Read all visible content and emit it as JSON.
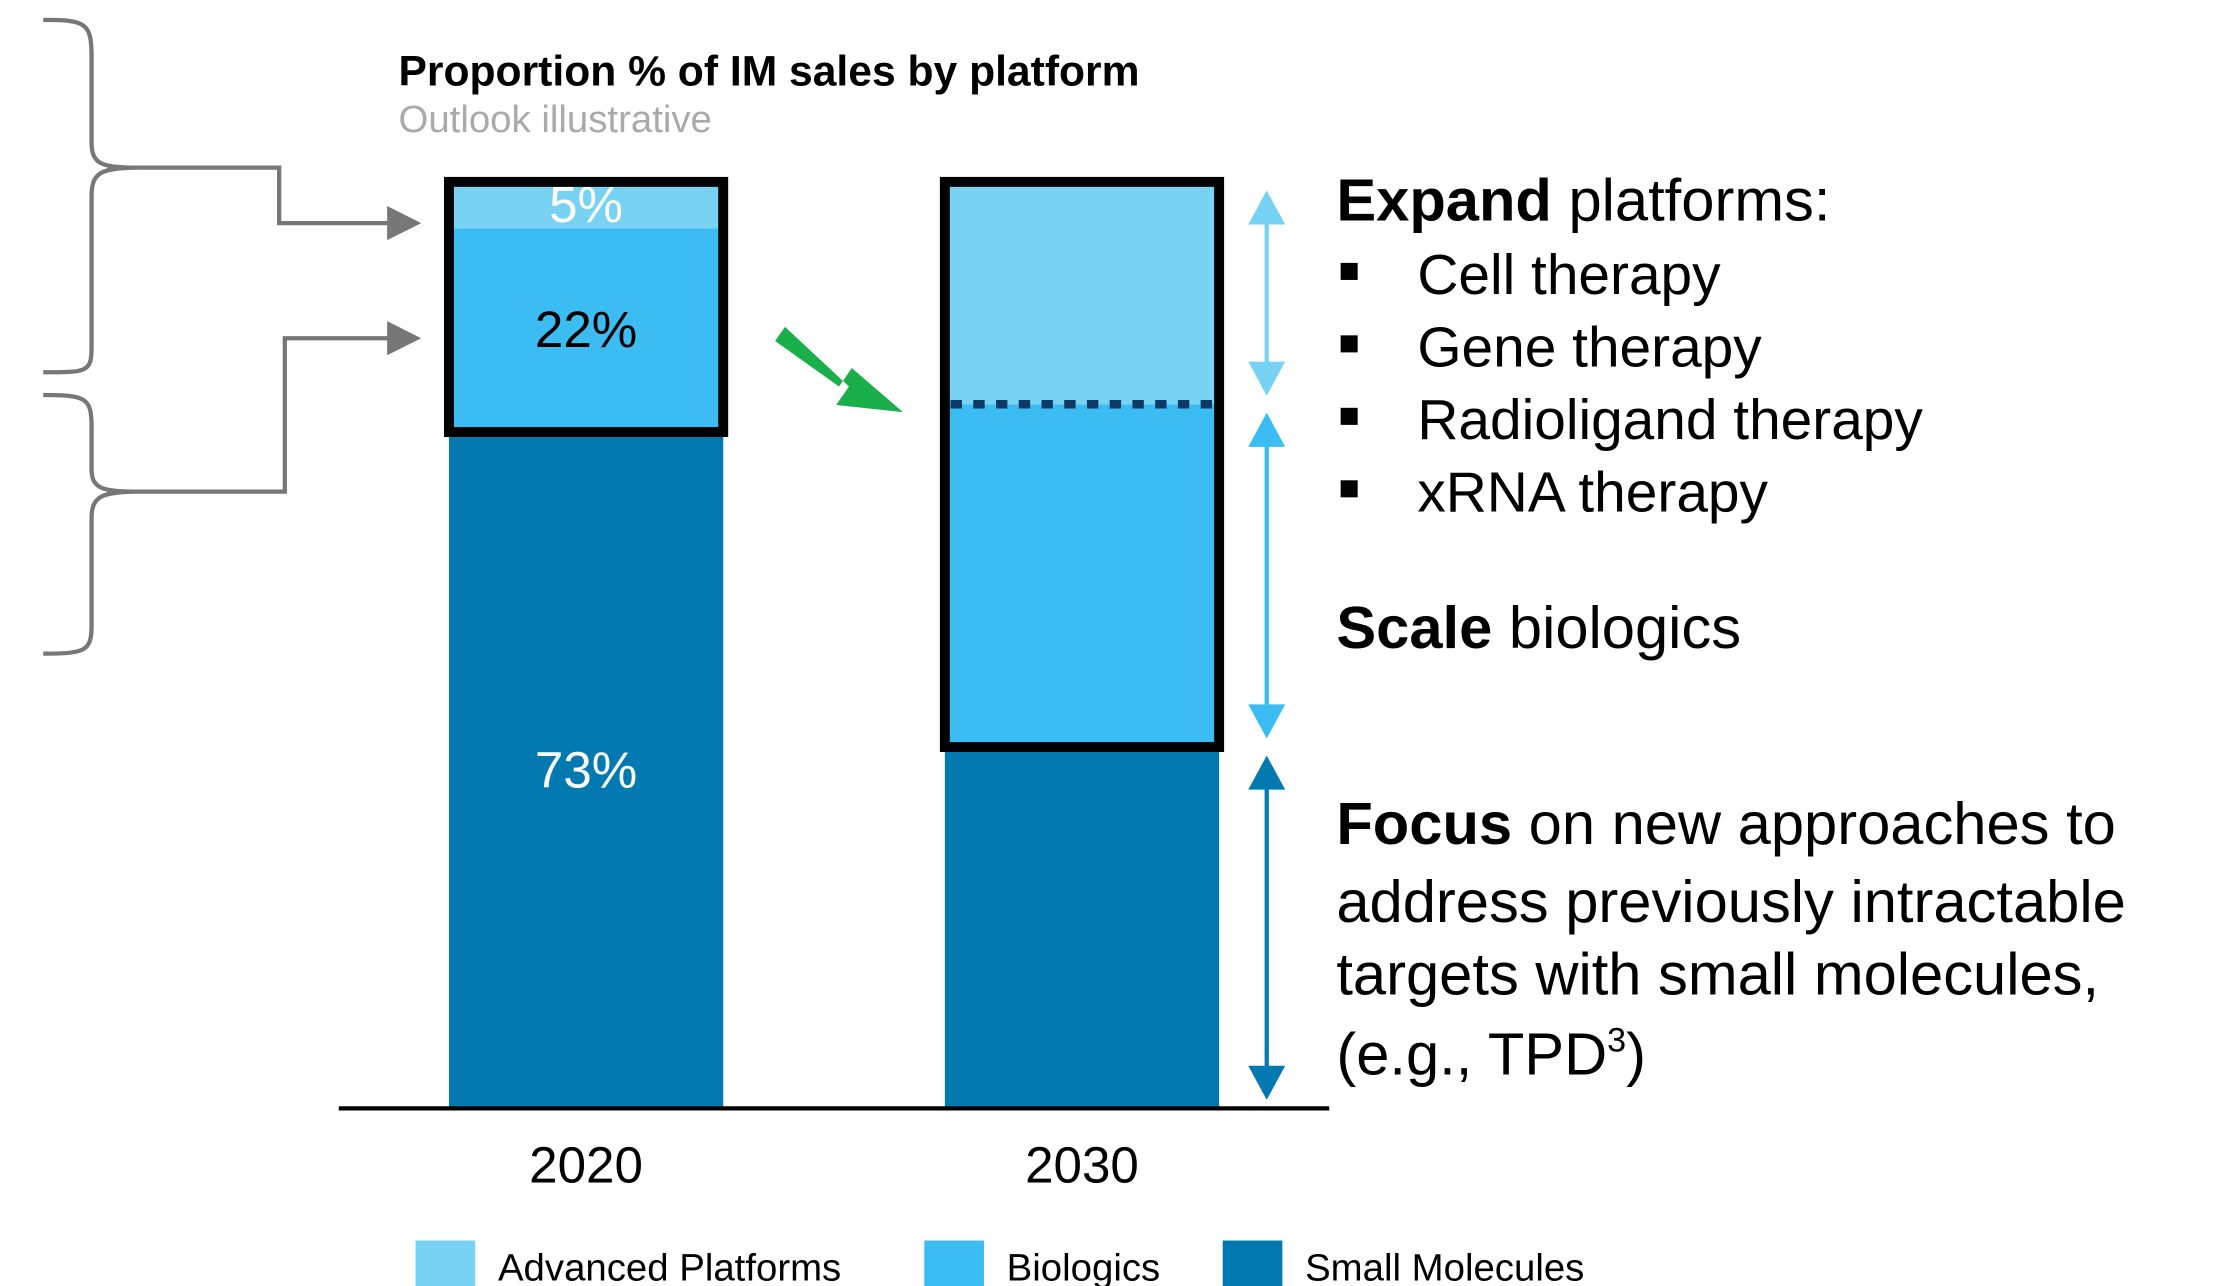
{
  "chart_data": {
    "type": "stacked_bar",
    "title": "Proportion % of IM sales by platform",
    "subtitle": "Outlook illustrative",
    "categories": [
      "2020",
      "2030"
    ],
    "ylim": [
      0,
      100
    ],
    "series": [
      {
        "name": "Small Molecules",
        "color": "#0279b1",
        "values": [
          73,
          39
        ],
        "value_labels": [
          "73%",
          null
        ],
        "label_color": "#ffffff"
      },
      {
        "name": "Biologics",
        "color": "#3bbcf2",
        "values": [
          22,
          37
        ],
        "value_labels": [
          "22%",
          null
        ],
        "label_color": "#000000"
      },
      {
        "name": "Advanced Platforms",
        "color": "#77d2f3",
        "values": [
          5,
          24
        ],
        "value_labels": [
          "5%",
          null
        ],
        "label_color": "#ffffff"
      }
    ],
    "legend_order": [
      2,
      1,
      0
    ],
    "annotations": {
      "expand": {
        "bold": "Expand",
        "rest": " platforms:",
        "bullets": [
          "Cell therapy",
          "Gene therapy",
          "Radioligand therapy",
          "xRNA therapy"
        ]
      },
      "scale": {
        "bold": "Scale",
        "rest": " biologics"
      },
      "focus": {
        "bold": "Focus",
        "lines": [
          " on new approaches to",
          "address previously intractable",
          "targets with small molecules,",
          "(e.g., TPD"
        ],
        "sup": "3",
        "end": ")"
      }
    }
  }
}
